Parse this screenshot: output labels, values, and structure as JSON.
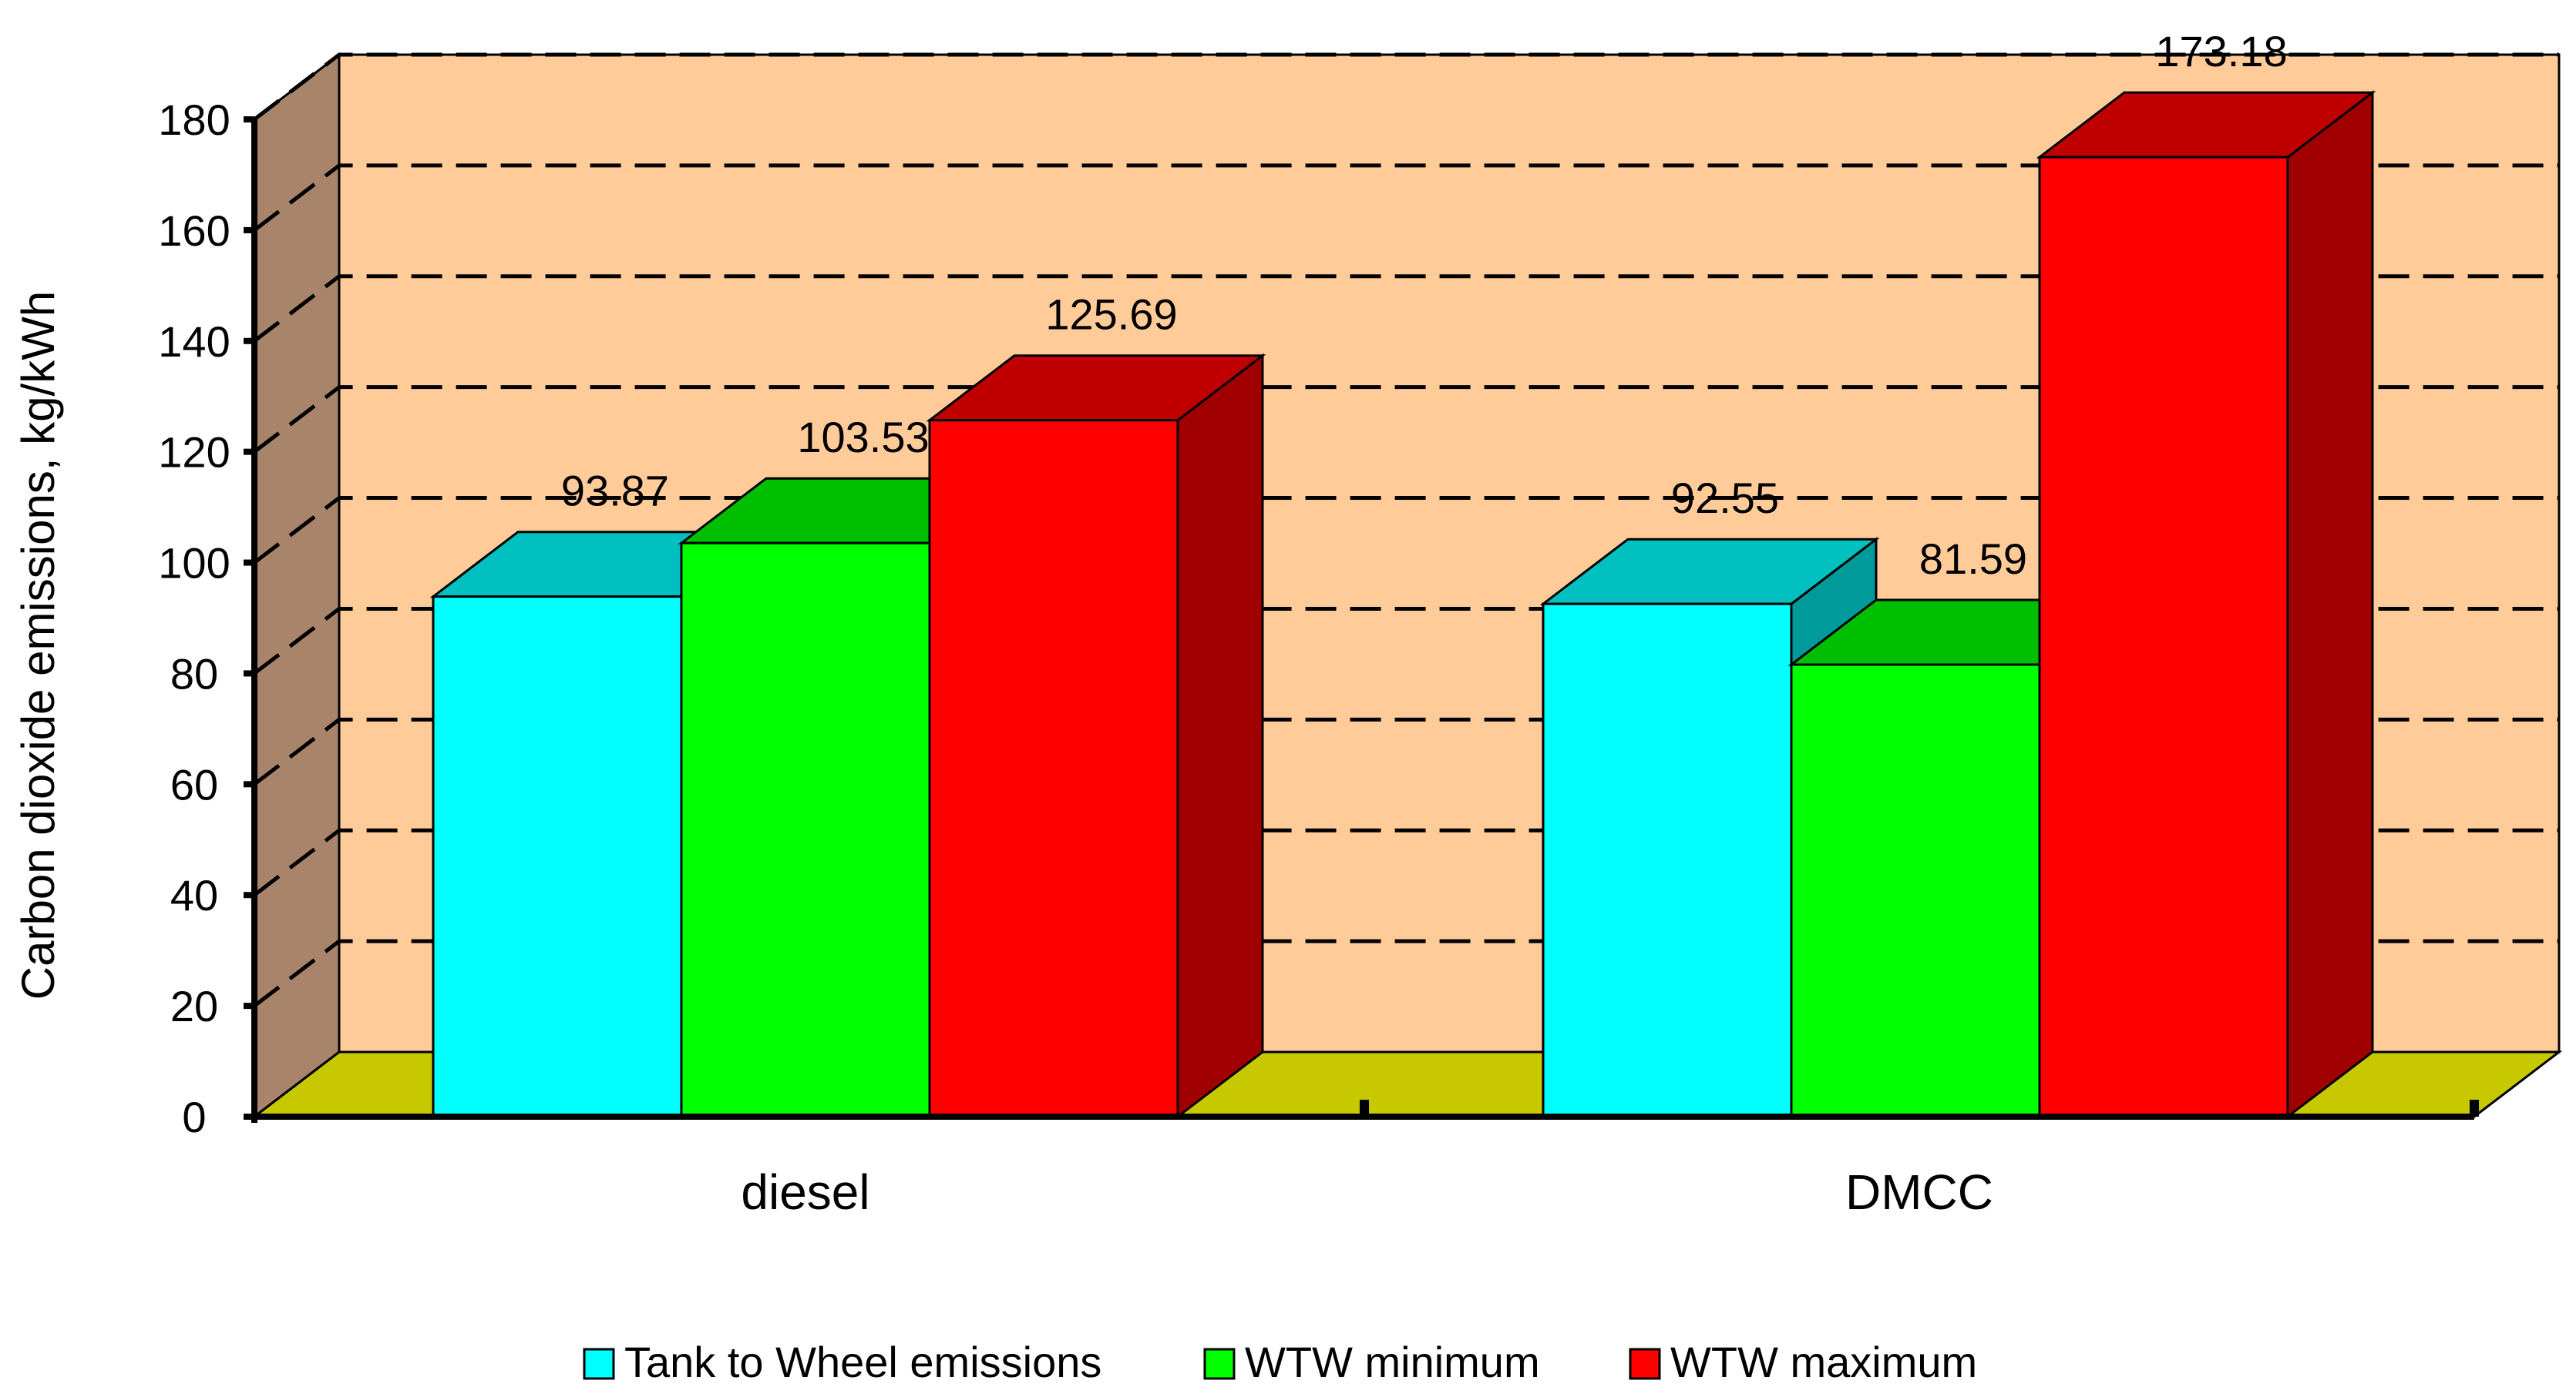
{
  "chart_data": {
    "type": "bar",
    "title": "",
    "xlabel": "",
    "ylabel": "Carbon dioxide emissions, kg/kWh",
    "ylim": [
      0,
      180
    ],
    "yticks": [
      0,
      20,
      40,
      60,
      80,
      100,
      120,
      140,
      160,
      180
    ],
    "grid": true,
    "legend_position": "bottom",
    "categories": [
      "diesel",
      "DMCC"
    ],
    "series": [
      {
        "name": "Tank to Wheel emissions",
        "values": [
          93.87,
          92.55
        ],
        "color": "#00FFFF",
        "top_color": "#00C0C0",
        "side_color": "#009A9A"
      },
      {
        "name": "WTW minimum",
        "values": [
          103.53,
          81.59
        ],
        "color": "#00FF00",
        "top_color": "#00BF00",
        "side_color": "#009A00"
      },
      {
        "name": "WTW maximum",
        "values": [
          125.69,
          173.18
        ],
        "color": "#FF0000",
        "top_color": "#C00000",
        "side_color": "#A00000"
      }
    ],
    "data_labels": [
      [
        "93.87",
        "92.55"
      ],
      [
        "103.53",
        "81.59"
      ],
      [
        "125.69",
        "173.18"
      ]
    ],
    "colors": {
      "back_wall": "#FFCC99",
      "side_wall": "#A8856A",
      "floor": "#C8C800",
      "grid_line": "#000000"
    }
  }
}
